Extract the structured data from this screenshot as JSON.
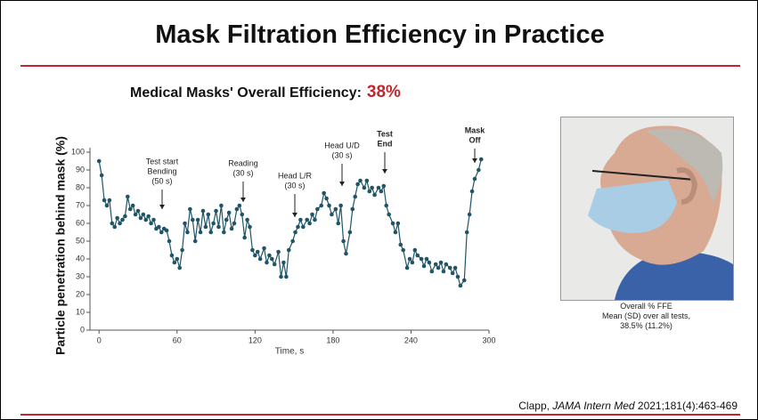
{
  "title": "Mask Filtration Efficiency in Practice",
  "subtitle": {
    "text": "Medical Masks' Overall Efficiency:",
    "highlight": "38%"
  },
  "caption": [
    "Overall % FFE",
    "Mean (SD) over all tests,",
    "38.5% (11.2%)"
  ],
  "citation": {
    "author": "Clapp,",
    "journal": "JAMA Intern Med",
    "ref": "2021;181(4):463-469"
  },
  "chart_data": {
    "type": "line",
    "xlabel": "Time, s",
    "ylabel": "Particle penetration behind mask (%)",
    "xlim": [
      -7,
      300
    ],
    "ylim": [
      0,
      100
    ],
    "xticks": [
      0,
      60,
      120,
      180,
      240,
      300
    ],
    "yticks": [
      0,
      10,
      20,
      30,
      40,
      50,
      60,
      70,
      80,
      90,
      100
    ],
    "x": [
      0,
      2,
      4,
      6,
      8,
      10,
      12,
      14,
      16,
      18,
      20,
      22,
      24,
      26,
      28,
      30,
      32,
      34,
      36,
      38,
      40,
      42,
      44,
      46,
      48,
      50,
      52,
      54,
      56,
      58,
      60,
      62,
      64,
      66,
      68,
      70,
      72,
      74,
      76,
      78,
      80,
      82,
      84,
      86,
      88,
      90,
      92,
      94,
      96,
      98,
      100,
      102,
      104,
      106,
      108,
      110,
      112,
      114,
      116,
      118,
      120,
      122,
      124,
      127,
      129,
      131,
      133,
      135,
      138,
      140,
      142,
      144,
      146,
      149,
      151,
      153,
      155,
      157,
      160,
      162,
      164,
      166,
      168,
      171,
      173,
      175,
      177,
      179,
      182,
      184,
      186,
      188,
      190,
      193,
      195,
      197,
      199,
      201,
      204,
      206,
      208,
      210,
      212,
      215,
      217,
      219,
      221,
      223,
      226,
      228,
      230,
      232,
      234,
      237,
      239,
      241,
      243,
      245,
      248,
      250,
      252,
      254,
      256,
      259,
      261,
      263,
      265,
      267,
      270,
      272,
      274,
      276,
      278,
      281,
      283,
      285,
      287,
      289,
      292,
      294
    ],
    "series": [
      {
        "color": "#1f5566",
        "values": [
          95,
          87,
          73,
          70,
          73,
          60,
          58,
          63,
          60,
          62,
          64,
          75,
          68,
          70,
          65,
          67,
          63,
          65,
          62,
          64,
          60,
          62,
          57,
          58,
          55,
          57,
          56,
          50,
          42,
          38,
          40,
          35,
          45,
          60,
          55,
          68,
          62,
          50,
          62,
          55,
          67,
          58,
          65,
          55,
          60,
          67,
          58,
          70,
          55,
          62,
          66,
          57,
          60,
          68,
          70,
          65,
          52,
          62,
          58,
          45,
          42,
          44,
          40,
          46,
          38,
          42,
          40,
          37,
          44,
          30,
          38,
          30,
          45,
          50,
          55,
          58,
          62,
          58,
          62,
          60,
          65,
          62,
          68,
          70,
          77,
          74,
          70,
          65,
          68,
          60,
          70,
          50,
          43,
          55,
          68,
          75,
          82,
          84,
          80,
          84,
          78,
          80,
          76,
          80,
          78,
          81,
          70,
          65,
          60,
          55,
          60,
          48,
          45,
          35,
          40,
          38,
          45,
          42,
          40,
          36,
          40,
          38,
          33,
          37,
          35,
          38,
          33,
          37,
          35,
          32,
          35,
          30,
          25,
          28,
          55,
          65,
          78,
          85,
          90,
          96
        ]
      }
    ],
    "annotations": [
      [
        "Test start",
        "Bending",
        "(50 s)"
      ],
      [
        "Reading",
        "(30 s)"
      ],
      [
        "Head L/R",
        "(30 s)"
      ],
      [
        "Head U/D",
        "(30 s)"
      ],
      [
        "Test",
        "End"
      ],
      [
        "Mask",
        "Off"
      ]
    ]
  }
}
